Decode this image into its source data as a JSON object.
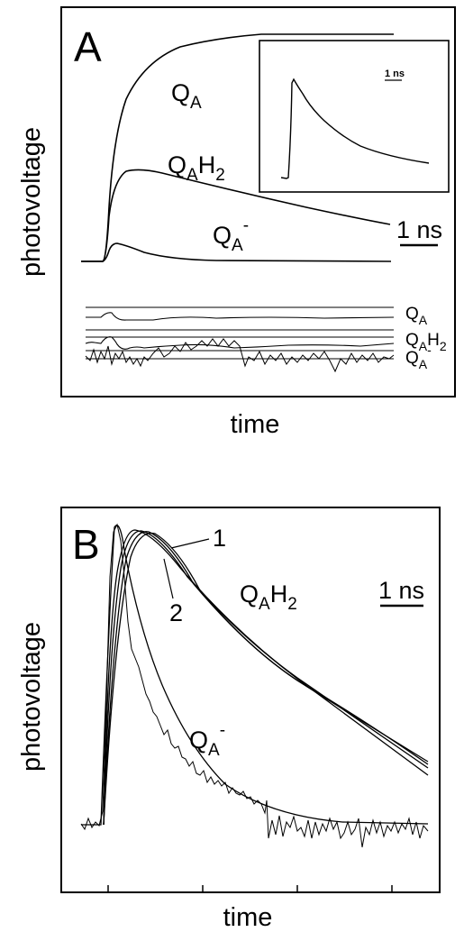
{
  "panels": [
    {
      "letter": "A",
      "ylabel": "photovoltage",
      "xlabel": "time",
      "scale_bar": "1 ns",
      "inset_scale_bar": "1 ns",
      "trace_labels": {
        "qa": {
          "main": "Q",
          "sub": "A",
          "sup": ""
        },
        "qah2": {
          "main": "Q",
          "sub": "A",
          "rest": "H",
          "sub2": "2"
        },
        "qam": {
          "main": "Q",
          "sub": "A",
          "sup": "-"
        }
      },
      "residual_labels": [
        {
          "main": "Q",
          "sub": "A",
          "rest": "",
          "sub2": "",
          "sup": ""
        },
        {
          "main": "Q",
          "sub": "A",
          "rest": "H",
          "sub2": "2",
          "sup": ""
        },
        {
          "main": "Q",
          "sub": "A",
          "rest": "",
          "sub2": "",
          "sup": "-"
        }
      ]
    },
    {
      "letter": "B",
      "ylabel": "photovoltage",
      "xlabel": "time",
      "scale_bar": "1 ns",
      "fit_labels": [
        "1",
        "2"
      ],
      "trace_labels": {
        "qah2": {
          "main": "Q",
          "sub": "A",
          "rest": "H",
          "sub2": "2"
        },
        "qam": {
          "main": "Q",
          "sub": "A",
          "sup": "-"
        }
      }
    }
  ],
  "chart_data": [
    {
      "type": "line",
      "panel": "A",
      "series": [
        {
          "name": "Q_A",
          "x": [
            0,
            0.3,
            0.6,
            1,
            1.5,
            2,
            3,
            4,
            5
          ],
          "y": [
            0,
            0.55,
            0.78,
            0.9,
            0.96,
            0.985,
            0.997,
            1.0,
            1.0
          ]
        },
        {
          "name": "Q_AH2",
          "x": [
            0,
            0.2,
            0.4,
            1,
            2,
            3,
            4,
            5
          ],
          "y": [
            0,
            0.35,
            0.38,
            0.35,
            0.29,
            0.23,
            0.18,
            0.14
          ]
        },
        {
          "name": "Q_A-",
          "x": [
            0,
            0.15,
            0.3,
            0.6,
            1,
            1.5,
            2,
            3,
            5
          ],
          "y": [
            0,
            0.07,
            0.065,
            0.04,
            0.02,
            0.008,
            0.003,
            0,
            0
          ]
        }
      ]
    },
    {
      "type": "line",
      "panel": "B",
      "series": [
        {
          "name": "Q_AH2",
          "x": [
            0,
            0.3,
            0.5,
            1,
            2,
            3,
            4,
            5.5
          ],
          "y": [
            0,
            0.9,
            1.0,
            0.92,
            0.7,
            0.5,
            0.34,
            0.2
          ]
        },
        {
          "name": "Q_A-",
          "x": [
            0,
            0.2,
            0.3,
            0.6,
            1,
            1.5,
            2,
            3,
            5.5
          ],
          "y": [
            0,
            0.95,
            1.0,
            0.72,
            0.45,
            0.25,
            0.12,
            0.04,
            0.02
          ]
        }
      ]
    }
  ]
}
